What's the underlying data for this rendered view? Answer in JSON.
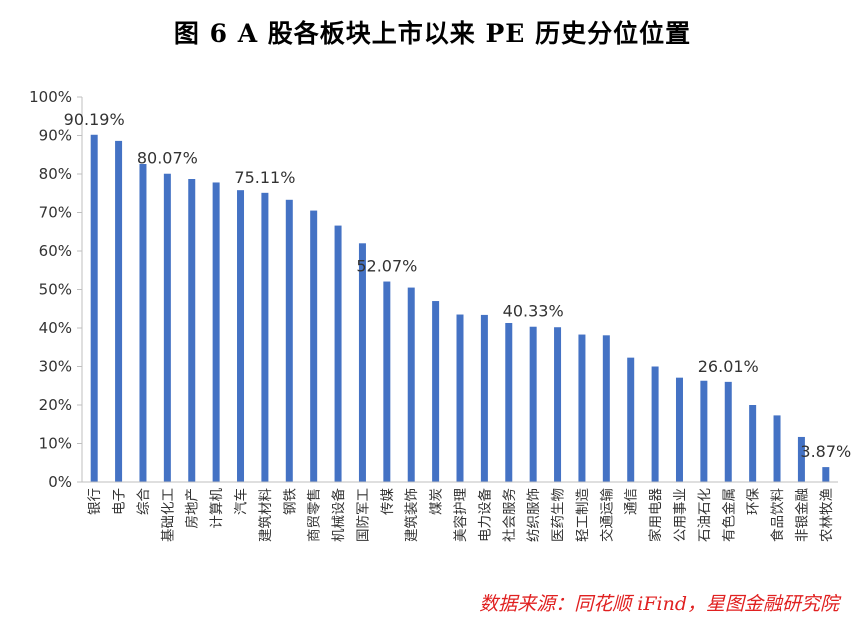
{
  "title": "图 6 A 股各板块上市以来 PE 历史分位位置",
  "source": "数据来源：同花顺 iFind，星图金融研究院",
  "colors": {
    "bar": "#4472c4",
    "axis": "#bfbfbf",
    "source_text": "#e02020"
  },
  "chart_data": {
    "type": "bar",
    "title": "图 6 A 股各板块上市以来 PE 历史分位位置",
    "xlabel": "",
    "ylabel": "",
    "ylim": [
      0,
      100
    ],
    "yticks": [
      "0%",
      "10%",
      "20%",
      "30%",
      "40%",
      "50%",
      "60%",
      "70%",
      "80%",
      "90%",
      "100%"
    ],
    "grid": false,
    "legend": "none",
    "categories": [
      "银行",
      "电子",
      "综合",
      "基础化工",
      "房地产",
      "计算机",
      "汽车",
      "建筑材料",
      "钢铁",
      "商贸零售",
      "机械设备",
      "国防军工",
      "传媒",
      "建筑装饰",
      "煤炭",
      "美容护理",
      "电力设备",
      "社会服务",
      "纺织服饰",
      "医药生物",
      "轻工制造",
      "交通运输",
      "通信",
      "家用电器",
      "公用事业",
      "石油石化",
      "有色金属",
      "环保",
      "食品饮料",
      "非银金融",
      "农林牧渔"
    ],
    "values": [
      90.19,
      88.6,
      82.6,
      80.07,
      78.7,
      77.8,
      75.8,
      75.11,
      73.3,
      70.5,
      66.6,
      62.0,
      52.07,
      50.5,
      47.0,
      43.5,
      43.4,
      41.3,
      40.33,
      40.2,
      38.3,
      38.1,
      32.3,
      30.0,
      27.1,
      26.3,
      26.01,
      20.0,
      17.3,
      11.7,
      3.87
    ],
    "data_labels": [
      {
        "index": 0,
        "text": "90.19%"
      },
      {
        "index": 3,
        "text": "80.07%"
      },
      {
        "index": 7,
        "text": "75.11%"
      },
      {
        "index": 12,
        "text": "52.07%"
      },
      {
        "index": 18,
        "text": "40.33%"
      },
      {
        "index": 26,
        "text": "26.01%"
      },
      {
        "index": 30,
        "text": "3.87%"
      }
    ]
  }
}
